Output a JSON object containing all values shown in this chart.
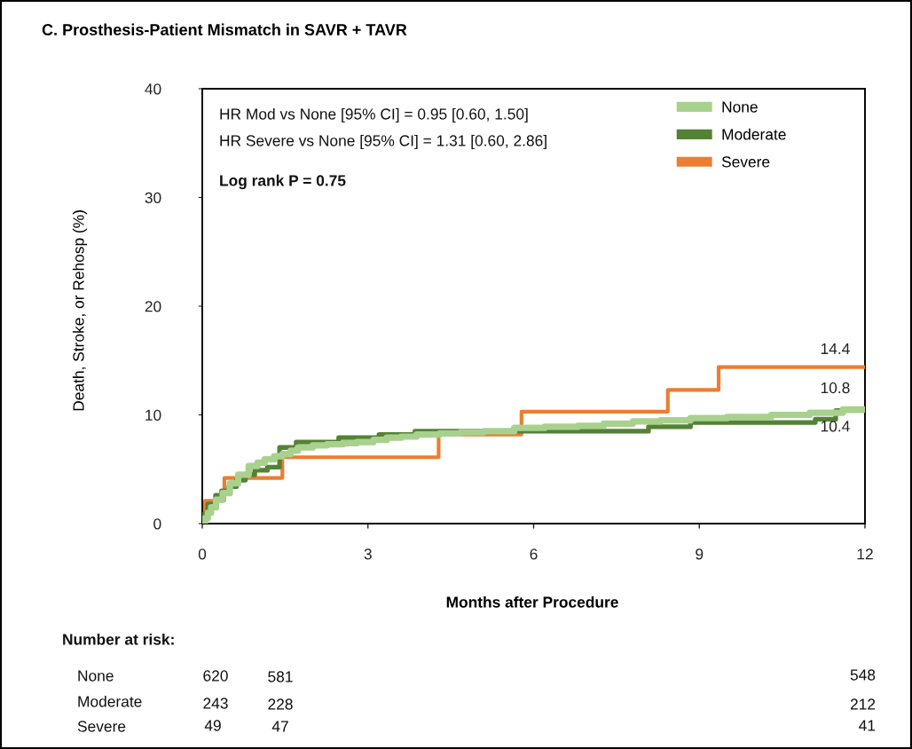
{
  "chart_data": {
    "type": "step",
    "title": "C. Prosthesis-Patient Mismatch in SAVR + TAVR",
    "xlabel": "Months after Procedure",
    "ylabel": "Death, Stroke, or Rehosp (%)",
    "xlim": [
      0,
      12
    ],
    "xticks": [
      0,
      3,
      6,
      9,
      12
    ],
    "ylim": [
      0,
      40
    ],
    "yticks": [
      0,
      10,
      20,
      30,
      40
    ],
    "legend": "top right",
    "annotations": [
      "HR Mod vs None [95% CI] = 0.95 [0.60, 1.50]",
      "HR Severe vs None [95% CI] = 1.31 [0.60, 2.86]",
      "Log rank P = 0.75",
      "Number at risk:",
      "None",
      "620",
      "581",
      "548",
      "Moderate",
      "243",
      "228",
      "212",
      "Severe",
      "49",
      "47",
      "41"
    ],
    "series": [
      {
        "name": "None",
        "color": "#a9d18e",
        "x": [
          0,
          0.05,
          0.1,
          0.16,
          0.25,
          0.37,
          0.5,
          0.65,
          0.84,
          1.0,
          1.13,
          1.3,
          1.45,
          1.6,
          1.73,
          2.0,
          2.26,
          2.55,
          2.8,
          3.1,
          3.34,
          3.6,
          3.88,
          4.3,
          4.68,
          5.1,
          5.65,
          6.2,
          6.8,
          7.27,
          7.8,
          8.3,
          8.84,
          9.5,
          10.3,
          11.0,
          11.6,
          12
        ],
        "values": [
          0,
          0.5,
          1.0,
          1.5,
          2.2,
          2.8,
          3.7,
          4.5,
          5.3,
          5.6,
          5.9,
          6.2,
          6.4,
          6.7,
          7.0,
          7.2,
          7.3,
          7.4,
          7.5,
          7.7,
          7.9,
          8.0,
          8.2,
          8.3,
          8.4,
          8.5,
          8.8,
          8.9,
          9.0,
          9.2,
          9.4,
          9.5,
          9.7,
          9.8,
          10.0,
          10.2,
          10.5,
          10.8
        ],
        "value_labels": [
          null,
          null,
          null,
          null,
          null,
          null,
          null,
          null,
          null,
          null,
          null,
          null,
          null,
          null,
          null,
          null,
          null,
          null,
          null,
          null,
          null,
          null,
          null,
          null,
          null,
          null,
          null,
          null,
          null,
          null,
          null,
          null,
          null,
          null,
          null,
          null,
          null,
          "10.8"
        ]
      },
      {
        "name": "Moderate",
        "color": "#548235",
        "x": [
          0,
          0.03,
          0.1,
          0.24,
          0.35,
          0.48,
          0.62,
          0.78,
          0.95,
          1.18,
          1.4,
          1.7,
          2.47,
          3.2,
          3.85,
          8.08,
          8.84,
          11.1,
          11.47,
          12
        ],
        "values": [
          0,
          0.9,
          1.8,
          2.6,
          3.0,
          3.4,
          4.0,
          4.5,
          4.9,
          5.2,
          7.0,
          7.5,
          7.9,
          8.2,
          8.5,
          8.9,
          9.3,
          9.6,
          10.4,
          10.4
        ],
        "value_labels": [
          null,
          null,
          null,
          null,
          null,
          null,
          null,
          null,
          null,
          null,
          null,
          null,
          null,
          null,
          null,
          null,
          null,
          null,
          null,
          "10.4"
        ]
      },
      {
        "name": "Severe",
        "color": "#ed7d31",
        "x": [
          0,
          0.05,
          0.4,
          1.45,
          4.28,
          5.78,
          8.43,
          9.35,
          12
        ],
        "values": [
          0,
          2.1,
          4.2,
          6.1,
          8.2,
          10.3,
          12.3,
          14.4,
          14.4
        ],
        "value_labels": [
          null,
          null,
          null,
          null,
          null,
          null,
          null,
          null,
          "14.4"
        ]
      }
    ]
  }
}
